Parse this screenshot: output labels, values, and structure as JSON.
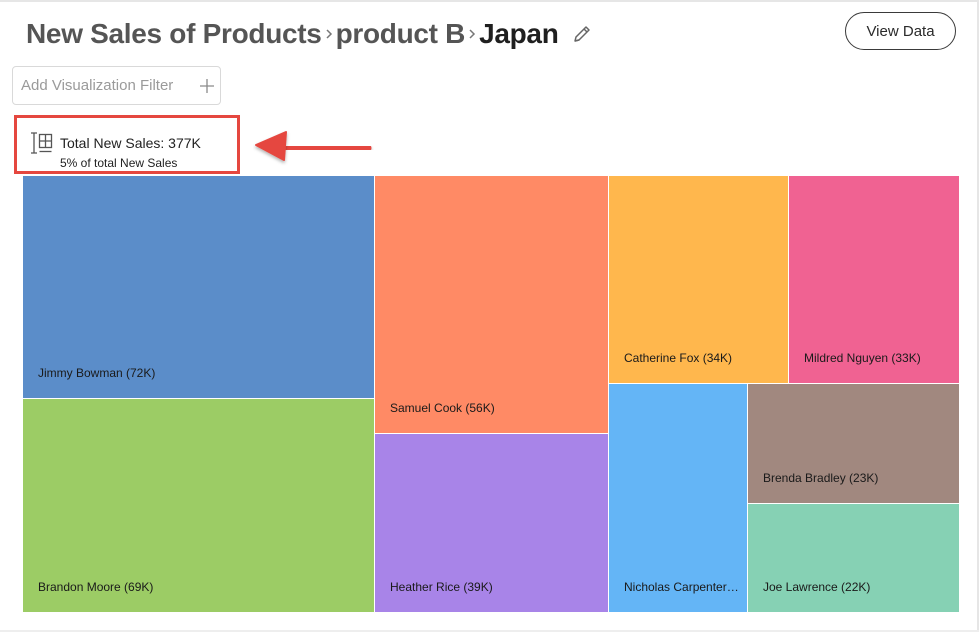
{
  "breadcrumb": {
    "items": [
      "New Sales of Products",
      "product B",
      "Japan"
    ]
  },
  "header": {
    "view_data_label": "View Data"
  },
  "filter": {
    "placeholder": "Add Visualization Filter"
  },
  "summary": {
    "title": "Total New Sales: 377K",
    "subtitle": "5% of total New Sales"
  },
  "colors": {
    "highlight": "#e5473f",
    "blue": "#5b8dc9",
    "green": "#9ccc65",
    "orange": "#ff8a65",
    "purple": "#a884e8",
    "amber": "#ffb74d",
    "pink": "#f06292",
    "light_blue": "#64b5f6",
    "taupe": "#a1887f",
    "mint": "#86d1b4"
  },
  "icons": {
    "separator": "chevron-right-icon",
    "edit": "pencil-icon",
    "filter_add": "plus-icon",
    "summary": "treemap-icon"
  },
  "chart_data": {
    "type": "treemap",
    "title": "",
    "items": [
      {
        "name": "Jimmy Bowman",
        "value": 72,
        "label": "Jimmy Bowman (72K)",
        "color": "#5b8dc9"
      },
      {
        "name": "Brandon Moore",
        "value": 69,
        "label": "Brandon Moore (69K)",
        "color": "#9ccc65"
      },
      {
        "name": "Samuel Cook",
        "value": 56,
        "label": "Samuel Cook (56K)",
        "color": "#ff8a65"
      },
      {
        "name": "Heather Rice",
        "value": 39,
        "label": "Heather Rice (39K)",
        "color": "#a884e8"
      },
      {
        "name": "Catherine Fox",
        "value": 34,
        "label": "Catherine Fox (34K)",
        "color": "#ffb74d"
      },
      {
        "name": "Mildred Nguyen",
        "value": 33,
        "label": "Mildred Nguyen (33K)",
        "color": "#f06292"
      },
      {
        "name": "Nicholas Carpenter",
        "value": 29,
        "label": "Nicholas Carpenter (…",
        "color": "#64b5f6"
      },
      {
        "name": "Brenda Bradley",
        "value": 23,
        "label": "Brenda Bradley (23K)",
        "color": "#a1887f"
      },
      {
        "name": "Joe Lawrence",
        "value": 22,
        "label": "Joe Lawrence (22K)",
        "color": "#86d1b4"
      }
    ]
  }
}
